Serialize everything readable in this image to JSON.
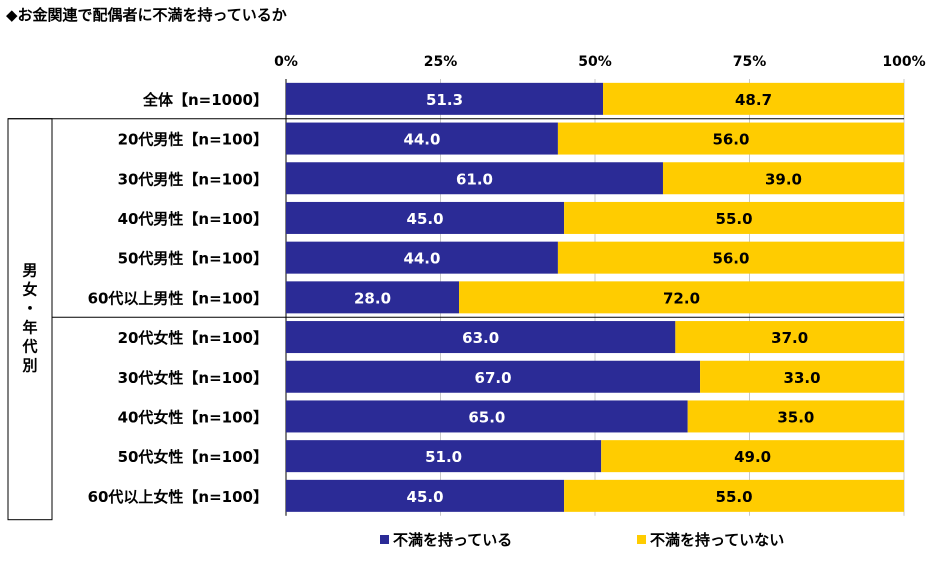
{
  "chart_data": {
    "type": "bar",
    "orientation": "horizontal",
    "stacked": true,
    "title": "◆お金関連で配偶者に不満を持っているか",
    "xlim": [
      0,
      100
    ],
    "x_ticks": [
      "0%",
      "25%",
      "50%",
      "75%",
      "100%"
    ],
    "group_label": "男女・年代別",
    "categories": [
      "全体【n=1000】",
      "20代男性【n=100】",
      "30代男性【n=100】",
      "40代男性【n=100】",
      "50代男性【n=100】",
      "60代以上男性【n=100】",
      "20代女性【n=100】",
      "30代女性【n=100】",
      "40代女性【n=100】",
      "50代女性【n=100】",
      "60代以上女性【n=100】"
    ],
    "series": [
      {
        "name": "不満を持っている",
        "color": "#2b2b96",
        "label_color": "#ffffff",
        "values": [
          51.3,
          44.0,
          61.0,
          45.0,
          44.0,
          28.0,
          63.0,
          67.0,
          65.0,
          51.0,
          45.0
        ]
      },
      {
        "name": "不満を持っていない",
        "color": "#ffcc00",
        "label_color": "#000000",
        "values": [
          48.7,
          56.0,
          39.0,
          55.0,
          56.0,
          72.0,
          37.0,
          33.0,
          35.0,
          49.0,
          55.0
        ]
      }
    ],
    "grid": true,
    "legend_position": "bottom"
  }
}
